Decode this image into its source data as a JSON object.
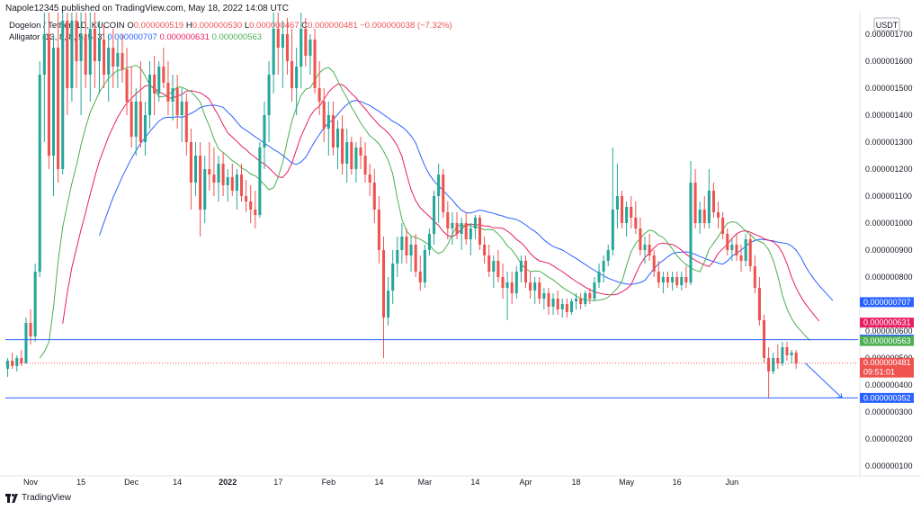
{
  "header": {
    "published": "Napole12345 published on TradingView.com, May 18, 2022 14:08 UTC"
  },
  "legend": {
    "symbol": "Dogelon / Tether, 1D, KUCOIN",
    "o_label": "O",
    "o_value": "0.000000519",
    "h_label": "H",
    "h_value": "0.000000530",
    "l_label": "L",
    "l_value": "0.000000467",
    "c_label": "C",
    "c_value": "0.000000481",
    "change": "−0.000000038 (−7.32%)",
    "indicator": "Alligator (13, 8, 8, 5, 5, 3)",
    "jaw_value": "0.000000707",
    "teeth_value": "0.000000631",
    "lips_value": "0.000000563"
  },
  "footer": {
    "brand": "TradingView"
  },
  "colors": {
    "up": "#26a69a",
    "down": "#ef5350",
    "jaw": "#2962ff",
    "teeth": "#e91e63",
    "lips": "#4caf50",
    "hline": "#2962ff"
  },
  "chart_data": {
    "type": "candlestick",
    "currency": "USDT",
    "y_ticks": [
      "0.000000100",
      "0.000000200",
      "0.000000300",
      "0.000000400",
      "0.000000500",
      "0.000000600",
      "0.000000700",
      "0.000000800",
      "0.000000900",
      "0.000001000",
      "0.000001100",
      "0.000001200",
      "0.000001300",
      "0.000001400",
      "0.000001500",
      "0.000001600",
      "0.000001700"
    ],
    "x_ticks": [
      "Nov",
      "15",
      "Dec",
      "14",
      "2022",
      "17",
      "Feb",
      "14",
      "Mar",
      "14",
      "Apr",
      "18",
      "May",
      "16",
      "Jun"
    ],
    "x_ticks_bold": [
      "2022"
    ],
    "ylim": [
      7e-08,
      1.78e-06
    ],
    "price_labels": [
      {
        "text": "0.000000707",
        "color": "#2962ff",
        "value": 7.07e-07
      },
      {
        "text": "0.000000631",
        "color": "#e91e63",
        "value": 6.31e-07
      },
      {
        "text": "0.000000568",
        "color": "#2962ff",
        "value": 5.68e-07
      },
      {
        "text": "0.000000563",
        "color": "#4caf50",
        "value": 5.63e-07
      },
      {
        "text": "0.000000481",
        "color": "#ef5350",
        "value": 4.81e-07,
        "sub": "09:51:01"
      },
      {
        "text": "0.000000352",
        "color": "#2962ff",
        "value": 3.52e-07
      }
    ],
    "horizontal_lines": [
      5.68e-07,
      3.52e-07
    ],
    "last_close": 4.81e-07,
    "projection": {
      "from_index": 174,
      "to_index": 182,
      "from": 4.81e-07,
      "to": 3.52e-07
    },
    "candles": [
      [
        4.6e-07,
        5e-07,
        4.3e-07,
        4.9e-07
      ],
      [
        4.9e-07,
        5.2e-07,
        4.6e-07,
        4.7e-07
      ],
      [
        4.7e-07,
        5.1e-07,
        4.5e-07,
        5e-07
      ],
      [
        5e-07,
        5.3e-07,
        4.7e-07,
        4.8e-07
      ],
      [
        4.8e-07,
        6.5e-07,
        4.8e-07,
        6.3e-07
      ],
      [
        6.3e-07,
        6.8e-07,
        5.5e-07,
        5.8e-07
      ],
      [
        5.8e-07,
        8.5e-07,
        5.6e-07,
        8.2e-07
      ],
      [
        8.2e-07,
        1.6e-06,
        8e-07,
        1.55e-06
      ],
      [
        1.55e-06,
        1.78e-06,
        1.3e-06,
        1.7e-06
      ],
      [
        1.7e-06,
        1.78e-06,
        1.2e-06,
        1.25e-06
      ],
      [
        1.25e-06,
        1.7e-06,
        1.1e-06,
        1.65e-06
      ],
      [
        1.65e-06,
        1.78e-06,
        1.15e-06,
        1.2e-06
      ],
      [
        1.2e-06,
        1.78e-06,
        1.18e-06,
        1.75e-06
      ],
      [
        1.75e-06,
        1.78e-06,
        1.4e-06,
        1.5e-06
      ],
      [
        1.5e-06,
        1.78e-06,
        1.45e-06,
        1.75e-06
      ],
      [
        1.75e-06,
        1.78e-06,
        1.5e-06,
        1.6e-06
      ],
      [
        1.6e-06,
        1.78e-06,
        1.4e-06,
        1.7e-06
      ],
      [
        1.7e-06,
        1.78e-06,
        1.5e-06,
        1.55e-06
      ],
      [
        1.55e-06,
        1.78e-06,
        1.45e-06,
        1.72e-06
      ],
      [
        1.72e-06,
        1.78e-06,
        1.5e-06,
        1.6e-06
      ],
      [
        1.6e-06,
        1.75e-06,
        1.48e-06,
        1.68e-06
      ],
      [
        1.68e-06,
        1.74e-06,
        1.5e-06,
        1.55e-06
      ],
      [
        1.55e-06,
        1.7e-06,
        1.45e-06,
        1.65e-06
      ],
      [
        1.65e-06,
        1.72e-06,
        1.5e-06,
        1.58e-06
      ],
      [
        1.58e-06,
        1.68e-06,
        1.5e-06,
        1.63e-06
      ],
      [
        1.63e-06,
        1.7e-06,
        1.52e-06,
        1.57e-06
      ],
      [
        1.57e-06,
        1.65e-06,
        1.4e-06,
        1.45e-06
      ],
      [
        1.45e-06,
        1.58e-06,
        1.28e-06,
        1.32e-06
      ],
      [
        1.32e-06,
        1.5e-06,
        1.25e-06,
        1.45e-06
      ],
      [
        1.45e-06,
        1.6e-06,
        1.28e-06,
        1.3e-06
      ],
      [
        1.3e-06,
        1.45e-06,
        1.25e-06,
        1.4e-06
      ],
      [
        1.4e-06,
        1.6e-06,
        1.35e-06,
        1.55e-06
      ],
      [
        1.55e-06,
        1.62e-06,
        1.4e-06,
        1.48e-06
      ],
      [
        1.48e-06,
        1.6e-06,
        1.45e-06,
        1.58e-06
      ],
      [
        1.58e-06,
        1.65e-06,
        1.5e-06,
        1.52e-06
      ],
      [
        1.52e-06,
        1.6e-06,
        1.4e-06,
        1.45e-06
      ],
      [
        1.45e-06,
        1.55e-06,
        1.38e-06,
        1.5e-06
      ],
      [
        1.5e-06,
        1.55e-06,
        1.35e-06,
        1.4e-06
      ],
      [
        1.4e-06,
        1.5e-06,
        1.3e-06,
        1.45e-06
      ],
      [
        1.45e-06,
        1.48e-06,
        1.25e-06,
        1.3e-06
      ],
      [
        1.3e-06,
        1.35e-06,
        1.05e-06,
        1.15e-06
      ],
      [
        1.15e-06,
        1.3e-06,
        1.1e-06,
        1.25e-06
      ],
      [
        1.25e-06,
        1.3e-06,
        9.5e-07,
        1.05e-06
      ],
      [
        1.05e-06,
        1.25e-06,
        1e-06,
        1.2e-06
      ],
      [
        1.2e-06,
        1.3e-06,
        1.12e-06,
        1.18e-06
      ],
      [
        1.18e-06,
        1.28e-06,
        1.1e-06,
        1.15e-06
      ],
      [
        1.15e-06,
        1.25e-06,
        1.08e-06,
        1.22e-06
      ],
      [
        1.22e-06,
        1.26e-06,
        1.1e-06,
        1.14e-06
      ],
      [
        1.14e-06,
        1.2e-06,
        1.08e-06,
        1.17e-06
      ],
      [
        1.17e-06,
        1.22e-06,
        1.1e-06,
        1.12e-06
      ],
      [
        1.12e-06,
        1.2e-06,
        1.05e-06,
        1.18e-06
      ],
      [
        1.18e-06,
        1.22e-06,
        1.08e-06,
        1.1e-06
      ],
      [
        1.1e-06,
        1.16e-06,
        1.04e-06,
        1.08e-06
      ],
      [
        1.08e-06,
        1.14e-06,
        1e-06,
        1.05e-06
      ],
      [
        1.05e-06,
        1.12e-06,
        9.8e-07,
        1.03e-06
      ],
      [
        1.03e-06,
        1.3e-06,
        1.02e-06,
        1.28e-06
      ],
      [
        1.28e-06,
        1.45e-06,
        1.2e-06,
        1.4e-06
      ],
      [
        1.4e-06,
        1.6e-06,
        1.3e-06,
        1.55e-06
      ],
      [
        1.55e-06,
        1.78e-06,
        1.48e-06,
        1.72e-06
      ],
      [
        1.72e-06,
        1.78e-06,
        1.55e-06,
        1.65e-06
      ],
      [
        1.65e-06,
        1.75e-06,
        1.5e-06,
        1.7e-06
      ],
      [
        1.7e-06,
        1.76e-06,
        1.55e-06,
        1.6e-06
      ],
      [
        1.6e-06,
        1.72e-06,
        1.45e-06,
        1.5e-06
      ],
      [
        1.5e-06,
        1.65e-06,
        1.4e-06,
        1.58e-06
      ],
      [
        1.58e-06,
        1.78e-06,
        1.5e-06,
        1.72e-06
      ],
      [
        1.72e-06,
        1.76e-06,
        1.58e-06,
        1.62e-06
      ],
      [
        1.62e-06,
        1.7e-06,
        1.55e-06,
        1.68e-06
      ],
      [
        1.68e-06,
        1.72e-06,
        1.48e-06,
        1.5e-06
      ],
      [
        1.5e-06,
        1.6e-06,
        1.4e-06,
        1.45e-06
      ],
      [
        1.45e-06,
        1.5e-06,
        1.3e-06,
        1.35e-06
      ],
      [
        1.35e-06,
        1.45e-06,
        1.25e-06,
        1.4e-06
      ],
      [
        1.4e-06,
        1.45e-06,
        1.25e-06,
        1.28e-06
      ],
      [
        1.28e-06,
        1.38e-06,
        1.2e-06,
        1.35e-06
      ],
      [
        1.35e-06,
        1.4e-06,
        1.18e-06,
        1.22e-06
      ],
      [
        1.22e-06,
        1.35e-06,
        1.15e-06,
        1.3e-06
      ],
      [
        1.3e-06,
        1.32e-06,
        1.18e-06,
        1.2e-06
      ],
      [
        1.2e-06,
        1.3e-06,
        1.15e-06,
        1.28e-06
      ],
      [
        1.28e-06,
        1.32e-06,
        1.2e-06,
        1.25e-06
      ],
      [
        1.25e-06,
        1.3e-06,
        1.15e-06,
        1.18e-06
      ],
      [
        1.18e-06,
        1.22e-06,
        1.1e-06,
        1.15e-06
      ],
      [
        1.15e-06,
        1.2e-06,
        1e-06,
        1.05e-06
      ],
      [
        1.05e-06,
        1.1e-06,
        8.5e-07,
        9e-07
      ],
      [
        9e-07,
        9.5e-07,
        5e-07,
        6.5e-07
      ],
      [
        6.5e-07,
        8e-07,
        6.2e-07,
        7.5e-07
      ],
      [
        7.5e-07,
        9e-07,
        7e-07,
        8.5e-07
      ],
      [
        8.5e-07,
        9.5e-07,
        8e-07,
        9e-07
      ],
      [
        9e-07,
        1e-06,
        8.5e-07,
        9.5e-07
      ],
      [
        9.5e-07,
        9.8e-07,
        8.5e-07,
        8.8e-07
      ],
      [
        8.8e-07,
        9.5e-07,
        8.2e-07,
        9.2e-07
      ],
      [
        9.2e-07,
        9.6e-07,
        8e-07,
        8.2e-07
      ],
      [
        8.2e-07,
        8.8e-07,
        7.5e-07,
        7.8e-07
      ],
      [
        7.8e-07,
        9.2e-07,
        7.6e-07,
        9e-07
      ],
      [
        9e-07,
        9.8e-07,
        8.8e-07,
        9.6e-07
      ],
      [
        9.6e-07,
        1.12e-06,
        9.2e-07,
        1.1e-06
      ],
      [
        1.1e-06,
        1.22e-06,
        1e-06,
        1.18e-06
      ],
      [
        1.18e-06,
        1.2e-06,
        1.02e-06,
        1.04e-06
      ],
      [
        1.04e-06,
        1.08e-06,
        9.4e-07,
        9.8e-07
      ],
      [
        9.8e-07,
        1.04e-06,
        9.2e-07,
        1e-06
      ],
      [
        1e-06,
        1.04e-06,
        9.4e-07,
        9.6e-07
      ],
      [
        9.6e-07,
        1.02e-06,
        9e-07,
        1e-06
      ],
      [
        1e-06,
        1.04e-06,
        9.2e-07,
        9.4e-07
      ],
      [
        9.4e-07,
        1e-06,
        8.8e-07,
        9.8e-07
      ],
      [
        9.8e-07,
        1.03e-06,
        9.4e-07,
        1.02e-06
      ],
      [
        1.02e-06,
        1.03e-06,
        9e-07,
        9.2e-07
      ],
      [
        9.2e-07,
        9.5e-07,
        8.5e-07,
        8.8e-07
      ],
      [
        8.8e-07,
        9.2e-07,
        8e-07,
        8.2e-07
      ],
      [
        8.2e-07,
        8.8e-07,
        7.6e-07,
        8.6e-07
      ],
      [
        8.6e-07,
        9e-07,
        7.8e-07,
        8e-07
      ],
      [
        8e-07,
        8.5e-07,
        7.2e-07,
        7.6e-07
      ],
      [
        7.6e-07,
        8.2e-07,
        6.4e-07,
        7.8e-07
      ],
      [
        7.8e-07,
        8.2e-07,
        7e-07,
        7.4e-07
      ],
      [
        7.4e-07,
        8.4e-07,
        7.2e-07,
        8.2e-07
      ],
      [
        8.2e-07,
        8.8e-07,
        7.8e-07,
        8.6e-07
      ],
      [
        8.6e-07,
        8.8e-07,
        7.6e-07,
        7.8e-07
      ],
      [
        7.8e-07,
        8.2e-07,
        7.2e-07,
        7.5e-07
      ],
      [
        7.5e-07,
        8e-07,
        7e-07,
        7.8e-07
      ],
      [
        7.8e-07,
        8e-07,
        7e-07,
        7.2e-07
      ],
      [
        7.2e-07,
        7.6e-07,
        6.8e-07,
        7.4e-07
      ],
      [
        7.4e-07,
        7.6e-07,
        6.6e-07,
        6.9e-07
      ],
      [
        6.9e-07,
        7.4e-07,
        6.6e-07,
        7.2e-07
      ],
      [
        7.2e-07,
        7.5e-07,
        6.6e-07,
        6.8e-07
      ],
      [
        6.8e-07,
        7.2e-07,
        6.5e-07,
        7e-07
      ],
      [
        7e-07,
        7.2e-07,
        6.5e-07,
        6.7e-07
      ],
      [
        6.7e-07,
        7.2e-07,
        6.6e-07,
        7.1e-07
      ],
      [
        7.1e-07,
        7.4e-07,
        6.8e-07,
        7.2e-07
      ],
      [
        7.2e-07,
        7.4e-07,
        6.8e-07,
        7e-07
      ],
      [
        7e-07,
        7.5e-07,
        6.9e-07,
        7.4e-07
      ],
      [
        7.4e-07,
        7.6e-07,
        7e-07,
        7.2e-07
      ],
      [
        7.2e-07,
        8e-07,
        7.1e-07,
        7.8e-07
      ],
      [
        7.8e-07,
        8.5e-07,
        7.6e-07,
        8.2e-07
      ],
      [
        8.2e-07,
        8.8e-07,
        7.8e-07,
        8.6e-07
      ],
      [
        8.6e-07,
        9.2e-07,
        8.4e-07,
        9e-07
      ],
      [
        9e-07,
        1.28e-06,
        8.8e-07,
        1.05e-06
      ],
      [
        1.05e-06,
        1.22e-06,
        9.8e-07,
        1.1e-06
      ],
      [
        1.1e-06,
        1.12e-06,
        9.8e-07,
        1e-06
      ],
      [
        1e-06,
        1.08e-06,
        9.5e-07,
        1.06e-06
      ],
      [
        1.06e-06,
        1.1e-06,
        9.8e-07,
        1.02e-06
      ],
      [
        1.02e-06,
        1.08e-06,
        9.6e-07,
        9.8e-07
      ],
      [
        9.8e-07,
        1.02e-06,
        8.8e-07,
        9e-07
      ],
      [
        9e-07,
        9.5e-07,
        8.5e-07,
        9.2e-07
      ],
      [
        9.2e-07,
        9.6e-07,
        8.6e-07,
        8.8e-07
      ],
      [
        8.8e-07,
        9e-07,
        8e-07,
        8.2e-07
      ],
      [
        8.2e-07,
        8.6e-07,
        7.6e-07,
        7.8e-07
      ],
      [
        7.8e-07,
        8.2e-07,
        7.4e-07,
        8e-07
      ],
      [
        8e-07,
        8.2e-07,
        7.6e-07,
        7.8e-07
      ],
      [
        7.8e-07,
        8.2e-07,
        7.5e-07,
        8e-07
      ],
      [
        8e-07,
        8.2e-07,
        7.6e-07,
        7.7e-07
      ],
      [
        7.7e-07,
        8.2e-07,
        7.5e-07,
        8e-07
      ],
      [
        8e-07,
        8.4e-07,
        7.6e-07,
        7.8e-07
      ],
      [
        7.8e-07,
        1.23e-06,
        7.7e-07,
        1.15e-06
      ],
      [
        1.15e-06,
        1.2e-06,
        9.8e-07,
        1e-06
      ],
      [
        1e-06,
        1.08e-06,
        9.6e-07,
        1.05e-06
      ],
      [
        1.05e-06,
        1.1e-06,
        9.8e-07,
        1e-06
      ],
      [
        1e-06,
        1.2e-06,
        9.8e-07,
        1.12e-06
      ],
      [
        1.12e-06,
        1.15e-06,
        1.02e-06,
        1.04e-06
      ],
      [
        1.04e-06,
        1.08e-06,
        9.8e-07,
        1.02e-06
      ],
      [
        1.02e-06,
        1.04e-06,
        9.4e-07,
        9.6e-07
      ],
      [
        9.6e-07,
        9.8e-07,
        8.8e-07,
        9e-07
      ],
      [
        9e-07,
        9.4e-07,
        8.6e-07,
        9.2e-07
      ],
      [
        9.2e-07,
        9.6e-07,
        8.6e-07,
        8.8e-07
      ],
      [
        8.8e-07,
        9.2e-07,
        8.2e-07,
        8.6e-07
      ],
      [
        8.6e-07,
        9.6e-07,
        8.4e-07,
        9.4e-07
      ],
      [
        9.4e-07,
        9.6e-07,
        8.2e-07,
        8.4e-07
      ],
      [
        8.4e-07,
        8.8e-07,
        7.4e-07,
        7.6e-07
      ],
      [
        7.6e-07,
        8e-07,
        6.2e-07,
        6.4e-07
      ],
      [
        6.4e-07,
        6.6e-07,
        4.8e-07,
        5e-07
      ],
      [
        5e-07,
        5.4e-07,
        3.5e-07,
        4.5e-07
      ],
      [
        4.5e-07,
        5.2e-07,
        4.4e-07,
        5e-07
      ],
      [
        5e-07,
        5.5e-07,
        4.6e-07,
        4.8e-07
      ],
      [
        4.8e-07,
        5.6e-07,
        4.7e-07,
        5.4e-07
      ],
      [
        5.4e-07,
        5.6e-07,
        4.9e-07,
        5.1e-07
      ],
      [
        5.1e-07,
        5.3e-07,
        4.8e-07,
        5.2e-07
      ],
      [
        5.2e-07,
        5.3e-07,
        4.6e-07,
        4.8e-07
      ]
    ]
  }
}
